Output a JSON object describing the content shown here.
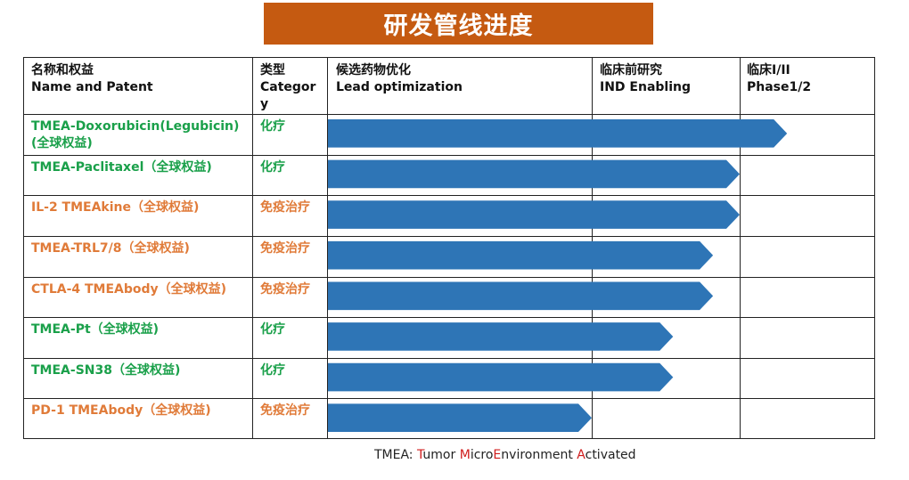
{
  "title": "研发管线进度",
  "headers": {
    "name": {
      "zh": "名称和权益",
      "en": "Name and Patent"
    },
    "category": {
      "zh": "类型",
      "en": "Category"
    },
    "lead": {
      "zh": "候选药物优化",
      "en": "Lead optimization"
    },
    "ind": {
      "zh": "临床前研究",
      "en": "IND Enabling"
    },
    "phase": {
      "zh": "临床I/II",
      "en": "Phase1/2"
    }
  },
  "colors": {
    "title_bg": "#c55a11",
    "bar": "#2e75b6",
    "green_text": "#1aa04a",
    "orange_text": "#e07b39",
    "footnote_highlight": "#d01c1c"
  },
  "chart_data": {
    "type": "bar",
    "orientation": "horizontal",
    "stages": [
      "候选药物优化 Lead optimization",
      "临床前研究 IND Enabling",
      "临床I/II Phase1/2"
    ],
    "xlim": [
      0,
      3
    ],
    "categories": [
      "TMEA-Doxorubicin(Legubicin)(全球权益)",
      "TMEA-Paclitaxel（全球权益)",
      "IL-2 TMEAkine（全球权益)",
      "TMEA-TRL7/8（全球权益)",
      "CTLA-4 TMEAbody（全球权益)",
      "TMEA-Pt（全球权益)",
      "TMEA-SN38（全球权益)",
      "PD-1 TMEAbody（全球权益)"
    ],
    "values": [
      2.35,
      2.0,
      2.0,
      1.82,
      1.82,
      1.55,
      1.55,
      1.0
    ]
  },
  "rows": [
    {
      "name": "TMEA-Doxorubicin(Legubicin)(全球权益)",
      "type": "化疗",
      "color": "green"
    },
    {
      "name": "TMEA-Paclitaxel（全球权益)",
      "type": "化疗",
      "color": "green"
    },
    {
      "name": "IL-2 TMEAkine（全球权益)",
      "type": "免疫治疗",
      "color": "orange"
    },
    {
      "name": "TMEA-TRL7/8（全球权益)",
      "type": "免疫治疗",
      "color": "orange"
    },
    {
      "name": "CTLA-4 TMEAbody（全球权益)",
      "type": "免疫治疗",
      "color": "orange"
    },
    {
      "name": "TMEA-Pt（全球权益)",
      "type": "化疗",
      "color": "green"
    },
    {
      "name": "TMEA-SN38（全球权益)",
      "type": "化疗",
      "color": "green"
    },
    {
      "name": "PD-1 TMEAbody（全球权益)",
      "type": "免疫治疗",
      "color": "orange"
    }
  ],
  "footnote": {
    "prefix": "TMEA: ",
    "parts": [
      {
        "text": "T",
        "highlight": true
      },
      {
        "text": "umor ",
        "highlight": false
      },
      {
        "text": "M",
        "highlight": true
      },
      {
        "text": "icro",
        "highlight": false
      },
      {
        "text": "E",
        "highlight": true
      },
      {
        "text": "nvironment ",
        "highlight": false
      },
      {
        "text": "A",
        "highlight": true
      },
      {
        "text": "ctivated",
        "highlight": false
      }
    ]
  }
}
